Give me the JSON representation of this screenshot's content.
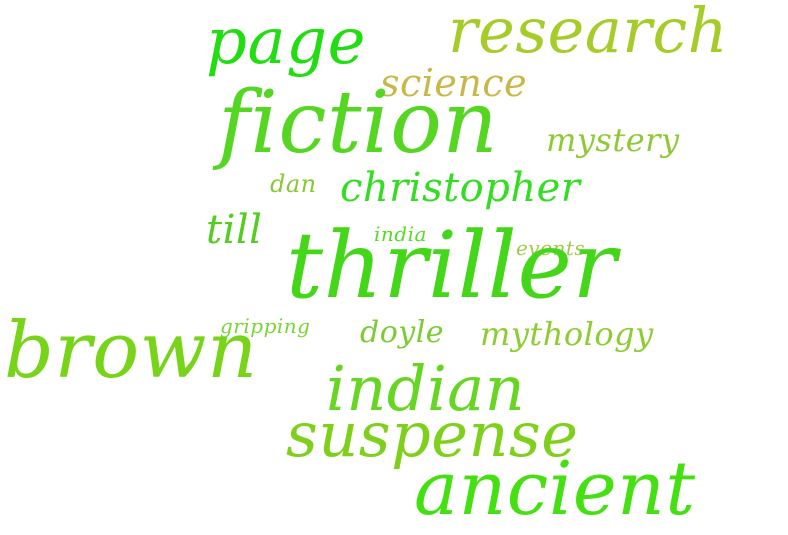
{
  "cloud": {
    "words": [
      {
        "key": "page",
        "text": "page",
        "color": "#22dd11"
      },
      {
        "key": "research",
        "text": "research",
        "color": "#a6cc2a"
      },
      {
        "key": "science",
        "text": "science",
        "color": "#c8b84a"
      },
      {
        "key": "fiction",
        "text": "fiction",
        "color": "#55d622"
      },
      {
        "key": "mystery",
        "text": "mystery",
        "color": "#8fc936"
      },
      {
        "key": "dan",
        "text": "dan",
        "color": "#86c932"
      },
      {
        "key": "christopher",
        "text": "christopher",
        "color": "#33dd22"
      },
      {
        "key": "till",
        "text": "till",
        "color": "#55cc22"
      },
      {
        "key": "india",
        "text": "india",
        "color": "#55dd22"
      },
      {
        "key": "events",
        "text": "events",
        "color": "#a3c94a"
      },
      {
        "key": "thriller",
        "text": "thriller",
        "color": "#44d618"
      },
      {
        "key": "brown",
        "text": "brown",
        "color": "#77d418"
      },
      {
        "key": "gripping",
        "text": "gripping",
        "color": "#77d633"
      },
      {
        "key": "doyle",
        "text": "doyle",
        "color": "#7bcc33"
      },
      {
        "key": "mythology",
        "text": "mythology",
        "color": "#8dcc33"
      },
      {
        "key": "indian",
        "text": "indian",
        "color": "#66d622"
      },
      {
        "key": "suspense",
        "text": "suspense",
        "color": "#7fd01c"
      },
      {
        "key": "ancient",
        "text": "ancient",
        "color": "#44e011"
      }
    ]
  }
}
